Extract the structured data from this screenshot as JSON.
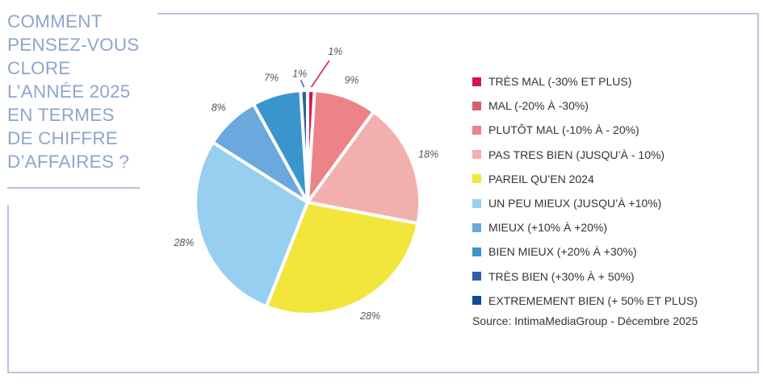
{
  "title": "COMMENT\nPENSEZ-VOUS\nCLORE\nL’ANNÉE 2025\nEN TERMES\nDE CHIFFRE\nD’AFFAIRES ?",
  "source": "Source: IntimaMediaGroup - Décembre 2025",
  "chart_data": {
    "type": "pie",
    "title": "COMMENT PENSEZ-VOUS CLORE L’ANNÉE 2025 EN TERMES DE CHIFFRE D’AFFAIRES ?",
    "legend_position": "right",
    "categories": [
      "TRÈS MAL (-30% ET PLUS)",
      "MAL (-20% À -30%)",
      "PLUTÔT MAL (-10% À - 20%)",
      "PAS TRES BIEN (JUSQU’À - 10%)",
      "PAREIL QU’EN 2024",
      "UN PEU MIEUX (JUSQU’À +10%)",
      "MIEUX (+10% À +20%)",
      "BIEN MIEUX (+20% À +30%)",
      "TRÈS BIEN (+30% À + 50%)",
      "EXTREMEMENT BIEN (+ 50% ET PLUS)"
    ],
    "values": [
      1,
      0,
      9,
      18,
      28,
      28,
      8,
      7,
      1,
      0
    ],
    "labels": [
      "1%",
      "",
      "9%",
      "18%",
      "28%",
      "28%",
      "8%",
      "7%",
      "1%",
      ""
    ],
    "colors": [
      "#d8134f",
      "#d9606e",
      "#ec8388",
      "#f1b0ae",
      "#f2e63c",
      "#96cff0",
      "#6aa8de",
      "#3a95cc",
      "#2f5fae",
      "#0e4c94"
    ]
  }
}
